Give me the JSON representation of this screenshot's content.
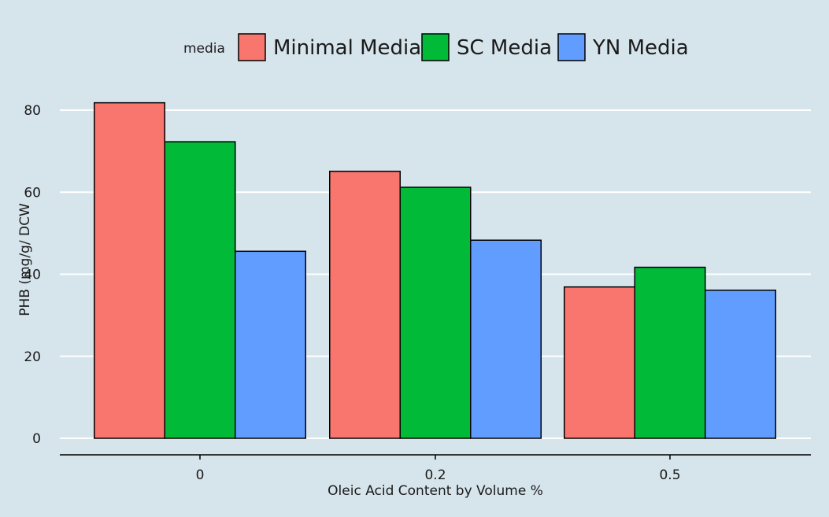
{
  "chart_data": {
    "type": "bar",
    "title": "",
    "xlabel": "Oleic Acid Content by Volume %",
    "ylabel": "PHB (mg/g/ DCW",
    "categories": [
      "0",
      "0.2",
      "0.5"
    ],
    "ylim": [
      0,
      85
    ],
    "yticks": [
      0,
      20,
      40,
      60,
      80
    ],
    "grid": "horizontal",
    "legend": {
      "title": "media",
      "placement": "top"
    },
    "series": [
      {
        "name": "Minimal Media",
        "color": "#f8766d",
        "values": [
          81.8,
          65.1,
          36.9
        ]
      },
      {
        "name": "SC Media",
        "color": "#00ba38",
        "values": [
          72.3,
          61.2,
          41.7
        ]
      },
      {
        "name": "YN Media",
        "color": "#619cff",
        "values": [
          45.6,
          48.3,
          36.1
        ]
      }
    ],
    "colors": {
      "panel_background": "#d6e5ec",
      "gridline": "#ffffff",
      "bar_outline": "#000000"
    }
  }
}
